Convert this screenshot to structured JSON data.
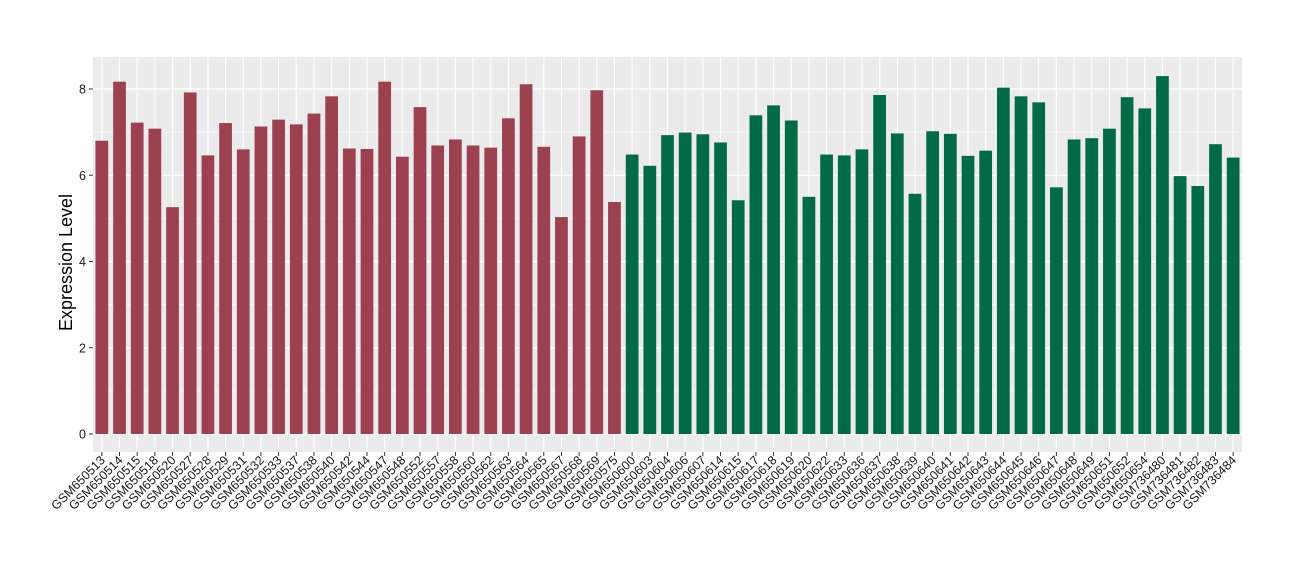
{
  "chart_data": {
    "type": "bar",
    "xlabel": "",
    "ylabel": "Expression Level",
    "ylim": [
      0,
      8.7
    ],
    "yticks": [
      0,
      2,
      4,
      6,
      8
    ],
    "grid": true,
    "legend": "none",
    "colors": {
      "group1": "#9B4150",
      "group2": "#026A45",
      "panel": "#EBEBEB",
      "grid": "#FFFFFF"
    },
    "categories": [
      "GSM650513",
      "GSM650514",
      "GSM650515",
      "GSM650518",
      "GSM650520",
      "GSM650527",
      "GSM650528",
      "GSM650529",
      "GSM650531",
      "GSM650532",
      "GSM650533",
      "GSM650537",
      "GSM650538",
      "GSM650540",
      "GSM650542",
      "GSM650544",
      "GSM650547",
      "GSM650548",
      "GSM650552",
      "GSM650557",
      "GSM650558",
      "GSM650560",
      "GSM650562",
      "GSM650563",
      "GSM650564",
      "GSM650565",
      "GSM650567",
      "GSM650568",
      "GSM650569",
      "GSM650575",
      "GSM650600",
      "GSM650603",
      "GSM650604",
      "GSM650606",
      "GSM650607",
      "GSM650614",
      "GSM650615",
      "GSM650617",
      "GSM650618",
      "GSM650619",
      "GSM650620",
      "GSM650622",
      "GSM650633",
      "GSM650636",
      "GSM650637",
      "GSM650638",
      "GSM650639",
      "GSM650640",
      "GSM650641",
      "GSM650642",
      "GSM650643",
      "GSM650644",
      "GSM650645",
      "GSM650646",
      "GSM650647",
      "GSM650648",
      "GSM650649",
      "GSM650651",
      "GSM650652",
      "GSM650654",
      "GSM736480",
      "GSM736481",
      "GSM736482",
      "GSM736483",
      "GSM736484"
    ],
    "values": [
      6.8,
      8.17,
      7.22,
      7.08,
      5.26,
      7.92,
      6.46,
      7.21,
      6.6,
      7.13,
      7.29,
      7.18,
      7.43,
      7.83,
      6.62,
      6.61,
      8.17,
      6.43,
      7.58,
      6.69,
      6.83,
      6.69,
      6.64,
      7.32,
      8.11,
      6.66,
      5.03,
      6.9,
      7.97,
      5.38,
      6.48,
      6.22,
      6.93,
      6.99,
      6.95,
      6.76,
      5.42,
      7.39,
      7.62,
      7.27,
      5.5,
      6.48,
      6.46,
      6.6,
      7.86,
      6.97,
      5.57,
      7.02,
      6.96,
      6.45,
      6.57,
      8.03,
      7.83,
      7.69,
      5.72,
      6.83,
      6.86,
      7.08,
      7.81,
      7.55,
      8.3,
      5.98,
      5.75,
      6.72,
      6.41
    ],
    "group_sizes": [
      30,
      35
    ]
  }
}
